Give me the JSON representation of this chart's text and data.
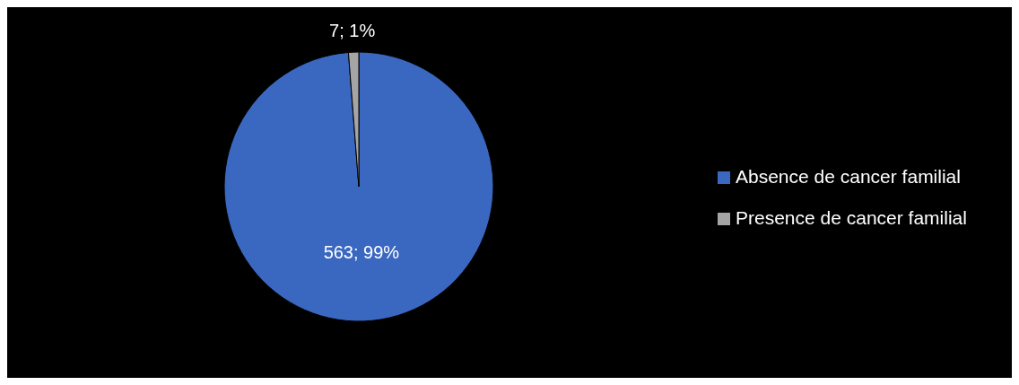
{
  "chart_data": {
    "type": "pie",
    "categories": [
      "Absence de cancer familial",
      "Presence de cancer familial"
    ],
    "values": [
      563,
      7
    ],
    "colors": [
      "#3a67c0",
      "#a5a5a5"
    ],
    "value_labels": [
      "563; 99%",
      "7; 1%"
    ],
    "legend": "right"
  }
}
